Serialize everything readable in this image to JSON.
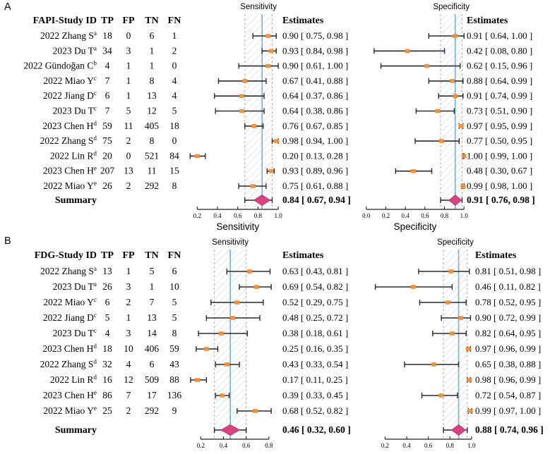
{
  "colors": {
    "ci_line": "#2a2a2a",
    "point_marker": "#F0913C",
    "summary_diamond": "#D8437F",
    "summary_diamond_edge": "#C12E68",
    "band_hatch": "#C9DFE9",
    "band_edge_dashed": "#A9B2B8",
    "summary_estimate_line": "#7AAFD1",
    "text": "#000000"
  },
  "chart_data": [
    {
      "type": "forest",
      "panel_label": "A",
      "id_header": "FAPI-Study ID",
      "count_headers": [
        "TP",
        "FP",
        "TN",
        "FN"
      ],
      "estimates_header": "Estimates",
      "outcome_titles": [
        "Sensitivity",
        "Specificity"
      ],
      "axis_labels": [
        "Sensitivity",
        "Specificity"
      ],
      "axes": [
        {
          "ticks": [
            0.2,
            0.4,
            0.6,
            0.8,
            1.0
          ],
          "range": [
            0.1,
            1.02
          ]
        },
        {
          "ticks": [
            0.0,
            0.2,
            0.4,
            0.6,
            0.8,
            1.0
          ],
          "range": [
            -0.02,
            1.02
          ]
        }
      ],
      "studies": [
        {
          "study": "2022 Zhang S",
          "sup": "a",
          "tp": 18,
          "fp": 0,
          "tn": 6,
          "fn": 1,
          "sens": {
            "est": 0.9,
            "ci": [
              0.75,
              0.98
            ],
            "label": "0.90 [ 0.75, 0.98 ]"
          },
          "spec": {
            "est": 0.91,
            "ci": [
              0.64,
              1.0
            ],
            "label": "0.91 [ 0.64, 1.00 ]"
          }
        },
        {
          "study": "2023 Du T",
          "sup": "a",
          "tp": 34,
          "fp": 3,
          "tn": 1,
          "fn": 2,
          "sens": {
            "est": 0.93,
            "ci": [
              0.84,
              0.98
            ],
            "label": "0.93 [ 0.84, 0.98 ]"
          },
          "spec": {
            "est": 0.42,
            "ci": [
              0.08,
              0.8
            ],
            "label": "0.42 [ 0.08, 0.80 ]"
          }
        },
        {
          "study": "2022 Gündoğan C",
          "sup": "b",
          "tp": 4,
          "fp": 1,
          "tn": 1,
          "fn": 0,
          "sens": {
            "est": 0.9,
            "ci": [
              0.61,
              1.0
            ],
            "label": "0.90 [ 0.61, 1.00 ]"
          },
          "spec": {
            "est": 0.62,
            "ci": [
              0.15,
              0.96
            ],
            "label": "0.62 [ 0.15, 0.96 ]"
          }
        },
        {
          "study": "2022 Miao Y",
          "sup": "c",
          "tp": 7,
          "fp": 1,
          "tn": 8,
          "fn": 4,
          "sens": {
            "est": 0.67,
            "ci": [
              0.41,
              0.88
            ],
            "label": "0.67 [ 0.41, 0.88 ]"
          },
          "spec": {
            "est": 0.88,
            "ci": [
              0.64,
              0.99
            ],
            "label": "0.88 [ 0.64, 0.99 ]"
          }
        },
        {
          "study": "2022 Jiang D",
          "sup": "c",
          "tp": 6,
          "fp": 1,
          "tn": 13,
          "fn": 4,
          "sens": {
            "est": 0.64,
            "ci": [
              0.37,
              0.86
            ],
            "label": "0.64 [ 0.37, 0.86 ]"
          },
          "spec": {
            "est": 0.91,
            "ci": [
              0.74,
              0.99
            ],
            "label": "0.91 [ 0.74, 0.99 ]"
          }
        },
        {
          "study": "2023 Du T",
          "sup": "c",
          "tp": 7,
          "fp": 5,
          "tn": 12,
          "fn": 5,
          "sens": {
            "est": 0.64,
            "ci": [
              0.38,
              0.86
            ],
            "label": "0.64 [ 0.38, 0.86 ]"
          },
          "spec": {
            "est": 0.73,
            "ci": [
              0.51,
              0.9
            ],
            "label": "0.73 [ 0.51, 0.90 ]"
          }
        },
        {
          "study": "2023 Chen H",
          "sup": "d",
          "tp": 59,
          "fp": 11,
          "tn": 405,
          "fn": 18,
          "sens": {
            "est": 0.76,
            "ci": [
              0.67,
              0.85
            ],
            "label": "0.76 [ 0.67, 0.85 ]"
          },
          "spec": {
            "est": 0.97,
            "ci": [
              0.95,
              0.99
            ],
            "label": "0.97 [ 0.95, 0.99 ]"
          }
        },
        {
          "study": "2022 Zhang S",
          "sup": "d",
          "tp": 75,
          "fp": 2,
          "tn": 8,
          "fn": 0,
          "sens": {
            "est": 0.98,
            "ci": [
              0.94,
              1.0
            ],
            "label": "0.98 [ 0.94, 1.00 ]"
          },
          "spec": {
            "est": 0.77,
            "ci": [
              0.5,
              0.95
            ],
            "label": "0.77 [ 0.50, 0.95 ]"
          }
        },
        {
          "study": "2022 Lin R",
          "sup": "d",
          "tp": 20,
          "fp": 0,
          "tn": 521,
          "fn": 84,
          "sens": {
            "est": 0.2,
            "ci": [
              0.13,
              0.28
            ],
            "label": "0.20 [ 0.13, 0.28 ]"
          },
          "spec": {
            "est": 1.0,
            "ci": [
              0.99,
              1.0
            ],
            "label": "1.00 [ 0.99, 1.00 ]"
          }
        },
        {
          "study": "2023 Chen H",
          "sup": "e",
          "tp": 207,
          "fp": 13,
          "tn": 11,
          "fn": 15,
          "sens": {
            "est": 0.93,
            "ci": [
              0.89,
              0.96
            ],
            "label": "0.93 [ 0.89, 0.96 ]"
          },
          "spec": {
            "est": 0.48,
            "ci": [
              0.3,
              0.67
            ],
            "label": "0.48 [ 0.30, 0.67 ]"
          }
        },
        {
          "study": "2022 Miao Y",
          "sup": "e",
          "tp": 26,
          "fp": 2,
          "tn": 292,
          "fn": 8,
          "sens": {
            "est": 0.75,
            "ci": [
              0.61,
              0.88
            ],
            "label": "0.75 [ 0.61, 0.88 ]"
          },
          "spec": {
            "est": 0.99,
            "ci": [
              0.98,
              1.0
            ],
            "label": "0.99 [ 0.98, 1.00 ]"
          }
        }
      ],
      "summary": {
        "label": "Summary",
        "sens": {
          "est": 0.84,
          "ci": [
            0.67,
            0.94
          ],
          "label": "0.84 [ 0.67, 0.94 ]"
        },
        "spec": {
          "est": 0.91,
          "ci": [
            0.76,
            0.98
          ],
          "label": "0.91 [ 0.76, 0.98 ]"
        }
      }
    },
    {
      "type": "forest",
      "panel_label": "B",
      "id_header": "FDG-Study ID",
      "count_headers": [
        "TP",
        "FP",
        "TN",
        "FN"
      ],
      "estimates_header": "Estimates",
      "outcome_titles": [
        "Sensitivity",
        "Specificity"
      ],
      "axis_labels": [],
      "axes": [
        {
          "ticks": [
            0.2,
            0.4,
            0.6,
            0.8
          ],
          "range": [
            0.08,
            0.9
          ]
        },
        {
          "ticks": [
            0.2,
            0.4,
            0.6,
            0.8,
            1.0
          ],
          "range": [
            0.08,
            1.02
          ]
        }
      ],
      "studies": [
        {
          "study": "2022 Zhang S",
          "sup": "a",
          "tp": 13,
          "fp": 1,
          "tn": 5,
          "fn": 6,
          "sens": {
            "est": 0.63,
            "ci": [
              0.43,
              0.81
            ],
            "label": "0.63 [ 0.43, 0.81 ]"
          },
          "spec": {
            "est": 0.81,
            "ci": [
              0.51,
              0.98
            ],
            "label": "0.81 [ 0.51, 0.98 ]"
          }
        },
        {
          "study": "2023 Du T",
          "sup": "a",
          "tp": 26,
          "fp": 3,
          "tn": 1,
          "fn": 10,
          "sens": {
            "est": 0.69,
            "ci": [
              0.54,
              0.82
            ],
            "label": "0.69 [ 0.54, 0.82 ]"
          },
          "spec": {
            "est": 0.46,
            "ci": [
              0.11,
              0.82
            ],
            "label": "0.46 [ 0.11, 0.82 ]"
          }
        },
        {
          "study": "2022 Miao Y",
          "sup": "c",
          "tp": 6,
          "fp": 2,
          "tn": 7,
          "fn": 5,
          "sens": {
            "est": 0.52,
            "ci": [
              0.29,
              0.75
            ],
            "label": "0.52 [ 0.29, 0.75 ]"
          },
          "spec": {
            "est": 0.78,
            "ci": [
              0.52,
              0.95
            ],
            "label": "0.78 [ 0.52, 0.95 ]"
          }
        },
        {
          "study": "2022 Jiang D",
          "sup": "c",
          "tp": 5,
          "fp": 1,
          "tn": 13,
          "fn": 5,
          "sens": {
            "est": 0.48,
            "ci": [
              0.25,
              0.72
            ],
            "label": "0.48 [ 0.25, 0.72 ]"
          },
          "spec": {
            "est": 0.9,
            "ci": [
              0.72,
              0.99
            ],
            "label": "0.90 [ 0.72, 0.99 ]"
          }
        },
        {
          "study": "2023 Du T",
          "sup": "c",
          "tp": 4,
          "fp": 3,
          "tn": 14,
          "fn": 8,
          "sens": {
            "est": 0.38,
            "ci": [
              0.18,
              0.61
            ],
            "label": "0.38 [ 0.18, 0.61 ]"
          },
          "spec": {
            "est": 0.82,
            "ci": [
              0.64,
              0.95
            ],
            "label": "0.82 [ 0.64, 0.95 ]"
          }
        },
        {
          "study": "2023 Chen H",
          "sup": "d",
          "tp": 18,
          "fp": 10,
          "tn": 406,
          "fn": 59,
          "sens": {
            "est": 0.25,
            "ci": [
              0.16,
              0.35
            ],
            "label": "0.25 [ 0.16, 0.35 ]"
          },
          "spec": {
            "est": 0.97,
            "ci": [
              0.96,
              0.99
            ],
            "label": "0.97 [ 0.96, 0.99 ]"
          }
        },
        {
          "study": "2022 Zhang S",
          "sup": "d",
          "tp": 32,
          "fp": 4,
          "tn": 6,
          "fn": 43,
          "sens": {
            "est": 0.43,
            "ci": [
              0.33,
              0.54
            ],
            "label": "0.43 [ 0.33, 0.54 ]"
          },
          "spec": {
            "est": 0.65,
            "ci": [
              0.38,
              0.88
            ],
            "label": "0.65 [ 0.38, 0.88 ]"
          }
        },
        {
          "study": "2022 Lin R",
          "sup": "d",
          "tp": 16,
          "fp": 12,
          "tn": 509,
          "fn": 88,
          "sens": {
            "est": 0.17,
            "ci": [
              0.11,
              0.25
            ],
            "label": "0.17 [ 0.11, 0.25 ]"
          },
          "spec": {
            "est": 0.98,
            "ci": [
              0.96,
              0.99
            ],
            "label": "0.98 [ 0.96, 0.99 ]"
          }
        },
        {
          "study": "2023 Chen H",
          "sup": "e",
          "tp": 86,
          "fp": 7,
          "tn": 17,
          "fn": 136,
          "sens": {
            "est": 0.39,
            "ci": [
              0.33,
              0.45
            ],
            "label": "0.39 [ 0.33, 0.45 ]"
          },
          "spec": {
            "est": 0.72,
            "ci": [
              0.54,
              0.87
            ],
            "label": "0.72 [ 0.54, 0.87 ]"
          }
        },
        {
          "study": "2022 Miao Y",
          "sup": "e",
          "tp": 25,
          "fp": 2,
          "tn": 292,
          "fn": 9,
          "sens": {
            "est": 0.68,
            "ci": [
              0.52,
              0.82
            ],
            "label": "0.68 [ 0.52, 0.82 ]"
          },
          "spec": {
            "est": 0.99,
            "ci": [
              0.97,
              1.0
            ],
            "label": "0.99 [ 0.97, 1.00 ]"
          }
        }
      ],
      "summary": {
        "label": "Summary",
        "sens": {
          "est": 0.46,
          "ci": [
            0.32,
            0.6
          ],
          "label": "0.46 [ 0.32, 0.60 ]"
        },
        "spec": {
          "est": 0.88,
          "ci": [
            0.74,
            0.96
          ],
          "label": "0.88 [ 0.74, 0.96 ]"
        }
      }
    }
  ]
}
